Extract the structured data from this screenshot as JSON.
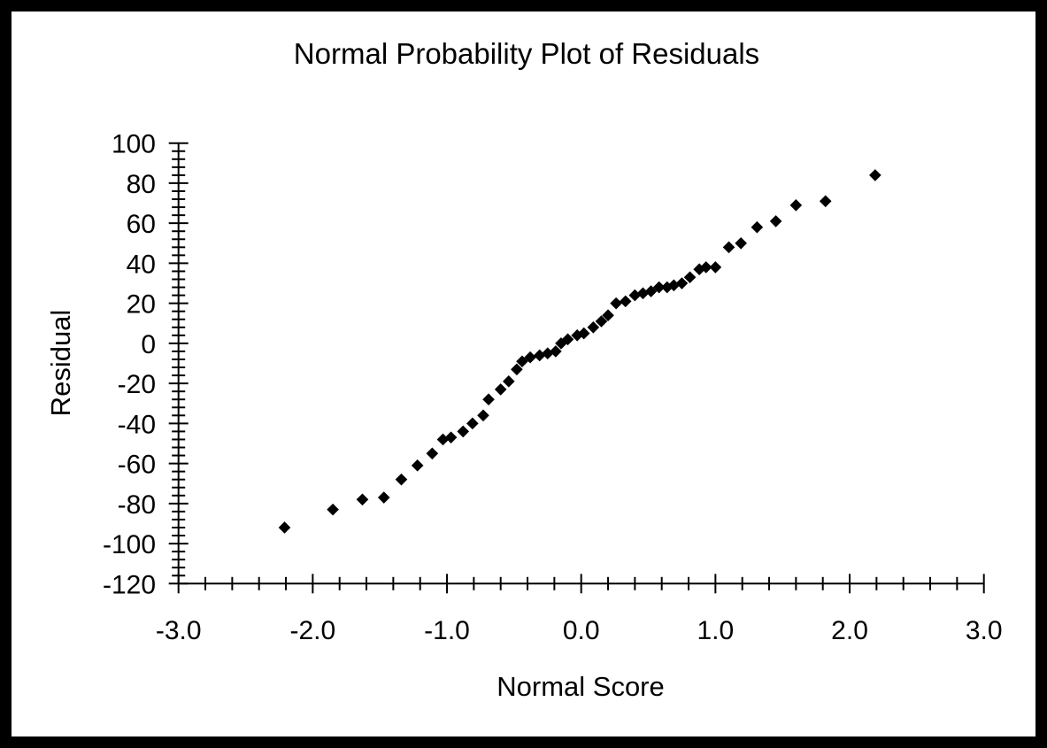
{
  "chart_data": {
    "type": "scatter",
    "title": "Normal Probability Plot of Residuals",
    "xlabel": "Normal Score",
    "ylabel": "Residual",
    "xlim": [
      -3.0,
      3.0
    ],
    "ylim": [
      -120,
      100
    ],
    "grid": false,
    "legend": false,
    "marker": "filled-diamond",
    "marker_color": "#000000",
    "x_major_tick_step": 1.0,
    "x_minor_tick_step": 0.2,
    "y_major_tick_step": 20,
    "y_minor_tick_step": 4,
    "x_tick_values": [
      -3.0,
      -2.0,
      -1.0,
      0.0,
      1.0,
      2.0,
      3.0
    ],
    "x_tick_labels": [
      "-3.0",
      "-2.0",
      "-1.0",
      "0.0",
      "1.0",
      "2.0",
      "3.0"
    ],
    "y_tick_values": [
      100,
      80,
      60,
      40,
      20,
      0,
      -20,
      -40,
      -60,
      -80,
      -100,
      -120
    ],
    "y_tick_labels": [
      "100",
      "80",
      "60",
      "40",
      "20",
      "0",
      "-20",
      "-40",
      "-60",
      "-80",
      "-100",
      "-120"
    ],
    "series": [
      {
        "name": "Residuals",
        "x": [
          -2.21,
          -1.85,
          -1.63,
          -1.47,
          -1.34,
          -1.22,
          -1.11,
          -1.03,
          -0.97,
          -0.88,
          -0.81,
          -0.73,
          -0.69,
          -0.6,
          -0.54,
          -0.48,
          -0.44,
          -0.38,
          -0.31,
          -0.25,
          -0.19,
          -0.15,
          -0.1,
          -0.03,
          0.02,
          0.09,
          0.15,
          0.2,
          0.26,
          0.33,
          0.4,
          0.46,
          0.52,
          0.58,
          0.64,
          0.69,
          0.75,
          0.81,
          0.88,
          0.93,
          1.0,
          1.1,
          1.19,
          1.31,
          1.45,
          1.6,
          1.82,
          2.19
        ],
        "y": [
          -92,
          -83,
          -78,
          -77,
          -68,
          -61,
          -55,
          -48,
          -47,
          -44,
          -40,
          -36,
          -28,
          -23,
          -19,
          -13,
          -9,
          -7,
          -6,
          -5,
          -4,
          0,
          2,
          4,
          5,
          8,
          11,
          14,
          20,
          21,
          24,
          25,
          26,
          28,
          28,
          29,
          30,
          33,
          37,
          38,
          38,
          48,
          50,
          58,
          61,
          69,
          71,
          84
        ]
      }
    ]
  },
  "colors": {
    "frame": "#000000",
    "background": "#ffffff",
    "axis": "#000000",
    "marker": "#000000",
    "text": "#000000"
  }
}
